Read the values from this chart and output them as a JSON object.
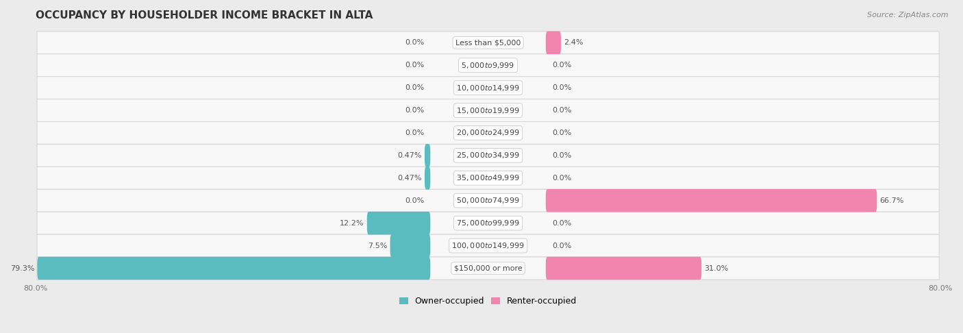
{
  "title": "OCCUPANCY BY HOUSEHOLDER INCOME BRACKET IN ALTA",
  "source": "Source: ZipAtlas.com",
  "categories": [
    "Less than $5,000",
    "$5,000 to $9,999",
    "$10,000 to $14,999",
    "$15,000 to $19,999",
    "$20,000 to $24,999",
    "$25,000 to $34,999",
    "$35,000 to $49,999",
    "$50,000 to $74,999",
    "$75,000 to $99,999",
    "$100,000 to $149,999",
    "$150,000 or more"
  ],
  "owner_values": [
    0.0,
    0.0,
    0.0,
    0.0,
    0.0,
    0.47,
    0.47,
    0.0,
    12.2,
    7.5,
    79.3
  ],
  "renter_values": [
    2.4,
    0.0,
    0.0,
    0.0,
    0.0,
    0.0,
    0.0,
    66.7,
    0.0,
    0.0,
    31.0
  ],
  "owner_color": "#4db8bc",
  "renter_color": "#f07aaa",
  "bg_color": "#ebebeb",
  "row_color": "#f8f8f8",
  "bar_color_owner": "#5bbcbf",
  "bar_color_renter": "#f185ad",
  "text_color_dark": "#555555",
  "text_color_label": "#444444",
  "xlim": 80.0,
  "owner_label": "Owner-occupied",
  "renter_label": "Renter-occupied",
  "title_fontsize": 11,
  "source_fontsize": 8,
  "tick_fontsize": 8,
  "bar_label_fontsize": 8,
  "cat_label_fontsize": 8,
  "legend_fontsize": 9
}
